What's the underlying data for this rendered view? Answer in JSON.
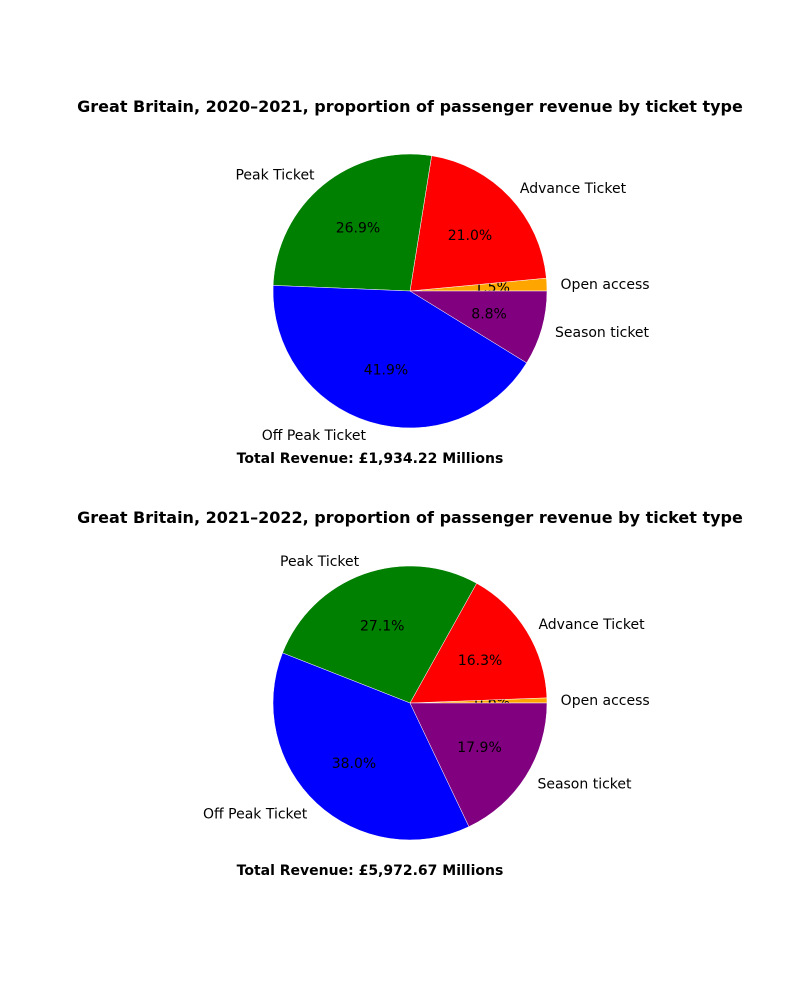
{
  "chart_data": [
    {
      "type": "pie",
      "title": "Great Britain, 2020–2021, proportion of passenger revenue by ticket type",
      "total_text": "Total Revenue: £1,934.22 Millions",
      "slices": [
        {
          "label": "Open access",
          "value": 1.5,
          "pct_text": "1.5%",
          "color": "#ffa500"
        },
        {
          "label": "Advance Ticket",
          "value": 21.0,
          "pct_text": "21.0%",
          "color": "#ff0000"
        },
        {
          "label": "Peak Ticket",
          "value": 26.9,
          "pct_text": "26.9%",
          "color": "#008000"
        },
        {
          "label": "Off Peak Ticket",
          "value": 41.9,
          "pct_text": "41.9%",
          "color": "#0000ff"
        },
        {
          "label": "Season ticket",
          "value": 8.8,
          "pct_text": "8.8%",
          "color": "#800080"
        }
      ]
    },
    {
      "type": "pie",
      "title": "Great Britain, 2021–2022, proportion of passenger revenue by ticket type",
      "total_text": "Total Revenue: £5,972.67 Millions",
      "slices": [
        {
          "label": "Open access",
          "value": 0.6,
          "pct_text": "0.6%",
          "color": "#ffa500"
        },
        {
          "label": "Advance Ticket",
          "value": 16.3,
          "pct_text": "16.3%",
          "color": "#ff0000"
        },
        {
          "label": "Peak Ticket",
          "value": 27.1,
          "pct_text": "27.1%",
          "color": "#008000"
        },
        {
          "label": "Off Peak Ticket",
          "value": 38.0,
          "pct_text": "38.0%",
          "color": "#0000ff"
        },
        {
          "label": "Season ticket",
          "value": 17.9,
          "pct_text": "17.9%",
          "color": "#800080"
        }
      ]
    }
  ]
}
